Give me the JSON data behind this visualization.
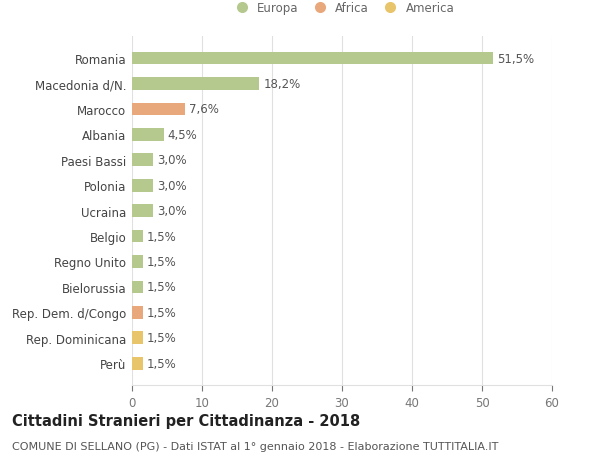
{
  "categories": [
    "Perù",
    "Rep. Dominicana",
    "Rep. Dem. d/Congo",
    "Bielorussia",
    "Regno Unito",
    "Belgio",
    "Ucraina",
    "Polonia",
    "Paesi Bassi",
    "Albania",
    "Marocco",
    "Macedonia d/N.",
    "Romania"
  ],
  "values": [
    1.5,
    1.5,
    1.5,
    1.5,
    1.5,
    1.5,
    3.0,
    3.0,
    3.0,
    4.5,
    7.6,
    18.2,
    51.5
  ],
  "labels": [
    "1,5%",
    "1,5%",
    "1,5%",
    "1,5%",
    "1,5%",
    "1,5%",
    "3,0%",
    "3,0%",
    "3,0%",
    "4,5%",
    "7,6%",
    "18,2%",
    "51,5%"
  ],
  "colors": [
    "#e8c46a",
    "#e8c46a",
    "#e8a87c",
    "#b5c98e",
    "#b5c98e",
    "#b5c98e",
    "#b5c98e",
    "#b5c98e",
    "#b5c98e",
    "#b5c98e",
    "#e8a87c",
    "#b5c98e",
    "#b5c98e"
  ],
  "legend_items": [
    {
      "label": "Europa",
      "color": "#b5c98e"
    },
    {
      "label": "Africa",
      "color": "#e8a87c"
    },
    {
      "label": "America",
      "color": "#e8c46a"
    }
  ],
  "xlim": [
    0,
    60
  ],
  "xticks": [
    0,
    10,
    20,
    30,
    40,
    50,
    60
  ],
  "title": "Cittadini Stranieri per Cittadinanza - 2018",
  "subtitle": "COMUNE DI SELLANO (PG) - Dati ISTAT al 1° gennaio 2018 - Elaborazione TUTTITALIA.IT",
  "background_color": "#ffffff",
  "grid_color": "#e0e0e0",
  "bar_height": 0.5,
  "label_fontsize": 8.5,
  "tick_fontsize": 8.5,
  "title_fontsize": 10.5,
  "subtitle_fontsize": 8.0
}
